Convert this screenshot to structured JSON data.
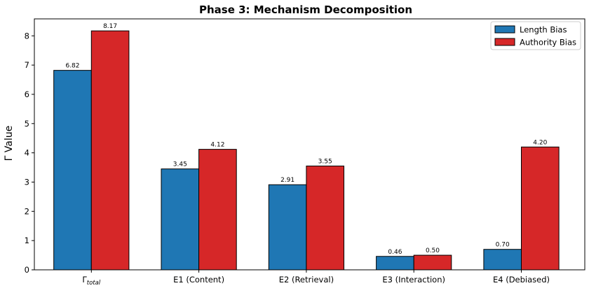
{
  "chart_data": {
    "type": "bar",
    "title": "Phase 3: Mechanism Decomposition",
    "xlabel": "",
    "ylabel": "Γ Value",
    "ylim": [
      0,
      8.58
    ],
    "yticks": [
      "0",
      "1",
      "2",
      "3",
      "4",
      "5",
      "6",
      "7",
      "8"
    ],
    "categories": [
      {
        "base": "Γ",
        "sub": "total"
      },
      {
        "base": "E1 (Content)",
        "sub": ""
      },
      {
        "base": "E2 (Retrieval)",
        "sub": ""
      },
      {
        "base": "E3 (Interaction)",
        "sub": ""
      },
      {
        "base": "E4 (Debiased)",
        "sub": ""
      }
    ],
    "series": [
      {
        "name": "Length Bias",
        "color": "#1f77b4",
        "values": [
          6.82,
          3.45,
          2.91,
          0.46,
          0.7
        ],
        "labels": [
          "6.82",
          "3.45",
          "2.91",
          "0.46",
          "0.70"
        ]
      },
      {
        "name": "Authority Bias",
        "color": "#d62728",
        "values": [
          8.17,
          4.12,
          3.55,
          0.5,
          4.2
        ],
        "labels": [
          "8.17",
          "4.12",
          "3.55",
          "0.50",
          "4.20"
        ]
      }
    ],
    "legend_position": "top-right",
    "grid": false
  }
}
